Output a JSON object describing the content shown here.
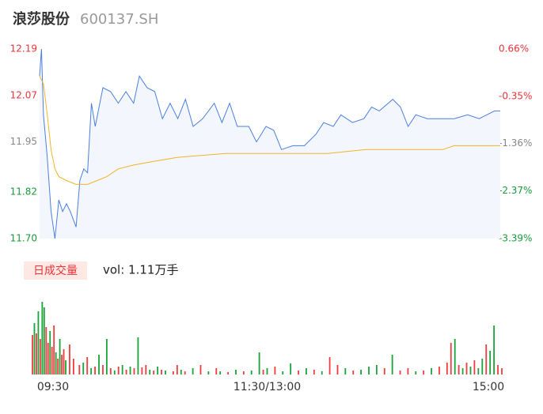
{
  "header": {
    "name": "浪莎股份",
    "code": "600137.SH"
  },
  "chart_data": [
    {
      "type": "line",
      "xlim": [
        0,
        240
      ],
      "ylim": [
        11.7,
        12.19
      ],
      "yticks": [
        {
          "value": 12.19,
          "label": "12.19"
        },
        {
          "value": 12.07,
          "label": "12.07"
        },
        {
          "value": 11.95,
          "label": "11.95"
        },
        {
          "value": 11.82,
          "label": "11.82"
        },
        {
          "value": 11.7,
          "label": "11.70"
        }
      ],
      "ytick_colors": [
        "#e8333a",
        "#e8333a",
        "#888888",
        "#1a9a3a",
        "#1a9a3a"
      ],
      "y2lim": [
        -3.39,
        0.66
      ],
      "y2ticks": [
        {
          "value": 0.66,
          "label": "0.66%"
        },
        {
          "value": -0.35,
          "label": "-0.35%"
        },
        {
          "value": -1.36,
          "label": "-1.36%"
        },
        {
          "value": -2.37,
          "label": "-2.37%"
        },
        {
          "value": -3.39,
          "label": "-3.39%"
        }
      ],
      "series": [
        {
          "color": "#4a7fe0",
          "area_color": "#f3f6fc",
          "x": [
            0,
            1,
            2,
            4,
            6,
            8,
            10,
            12,
            14,
            16,
            19,
            21,
            23,
            25,
            27,
            29,
            33,
            37,
            41,
            45,
            49,
            52,
            56,
            60,
            64,
            68,
            72,
            76,
            80,
            85,
            91,
            95,
            99,
            103,
            109,
            113,
            118,
            122,
            126,
            132,
            138,
            144,
            148,
            153,
            157,
            163,
            169,
            173,
            177,
            184,
            188,
            192,
            196,
            202,
            210,
            216,
            223,
            229,
            233,
            237,
            240
          ],
          "values": [
            12.12,
            12.19,
            12.02,
            11.91,
            11.77,
            11.7,
            11.8,
            11.77,
            11.79,
            11.77,
            11.73,
            11.85,
            11.88,
            11.87,
            12.05,
            11.99,
            12.09,
            12.08,
            12.05,
            12.08,
            12.05,
            12.12,
            12.09,
            12.08,
            12.01,
            12.05,
            12.01,
            12.06,
            11.99,
            12.01,
            12.05,
            12.0,
            12.05,
            11.99,
            11.99,
            11.95,
            11.99,
            11.98,
            11.93,
            11.94,
            11.94,
            11.97,
            12.0,
            11.99,
            12.02,
            12.0,
            12.01,
            12.04,
            12.03,
            12.06,
            12.04,
            11.99,
            12.02,
            12.01,
            12.01,
            12.01,
            12.02,
            12.01,
            12.02,
            12.03,
            12.03
          ]
        },
        {
          "color": "#f0b429",
          "x": [
            0,
            2,
            4,
            6,
            8,
            10,
            14,
            19,
            25,
            30,
            35,
            41,
            49,
            60,
            72,
            97,
            150,
            170,
            210,
            216,
            240
          ],
          "values": [
            12.12,
            12.1,
            12.02,
            11.93,
            11.88,
            11.86,
            11.85,
            11.84,
            11.84,
            11.85,
            11.86,
            11.88,
            11.89,
            11.9,
            11.91,
            11.92,
            11.92,
            11.93,
            11.93,
            11.94,
            11.94
          ]
        }
      ]
    },
    {
      "type": "bar",
      "legend_label": "日成交量",
      "vol_label": "vol: 1.11万手",
      "xlim": [
        0,
        240
      ],
      "ylim": [
        0,
        100
      ],
      "xticks": [
        {
          "value": 0,
          "label": "09:30"
        },
        {
          "value": 120,
          "label": "11:30/13:00"
        },
        {
          "value": 240,
          "label": "15:00"
        }
      ],
      "x": [
        0,
        1,
        2,
        3,
        4,
        5,
        6,
        7,
        8,
        9,
        10,
        11,
        12,
        13,
        14,
        15,
        16,
        17,
        19,
        21,
        24,
        26,
        28,
        30,
        32,
        34,
        36,
        38,
        40,
        42,
        44,
        46,
        48,
        50,
        52,
        54,
        56,
        58,
        60,
        62,
        64,
        66,
        68,
        72,
        74,
        76,
        78,
        82,
        86,
        90,
        94,
        96,
        100,
        104,
        108,
        112,
        116,
        118,
        120,
        124,
        128,
        132,
        136,
        140,
        144,
        148,
        152,
        156,
        160,
        164,
        168,
        172,
        176,
        180,
        184,
        188,
        192,
        196,
        200,
        204,
        208,
        212,
        214,
        216,
        218,
        220,
        222,
        224,
        226,
        228,
        230,
        232,
        234,
        236,
        238,
        240
      ],
      "values": [
        50,
        65,
        52,
        80,
        45,
        92,
        85,
        60,
        40,
        55,
        35,
        62,
        28,
        20,
        45,
        25,
        32,
        18,
        38,
        20,
        12,
        15,
        22,
        8,
        10,
        25,
        12,
        45,
        8,
        5,
        10,
        12,
        6,
        10,
        8,
        47,
        9,
        12,
        6,
        5,
        10,
        6,
        5,
        4,
        12,
        6,
        4,
        8,
        12,
        4,
        8,
        4,
        3,
        6,
        4,
        5,
        28,
        6,
        8,
        10,
        4,
        14,
        5,
        8,
        6,
        4,
        22,
        12,
        8,
        5,
        6,
        10,
        12,
        8,
        25,
        5,
        8,
        4,
        5,
        8,
        10,
        15,
        40,
        45,
        12,
        8,
        15,
        10,
        18,
        8,
        20,
        38,
        30,
        62,
        12,
        8
      ],
      "colors": [
        "r",
        "g",
        "r",
        "g",
        "r",
        "g",
        "g",
        "r",
        "r",
        "g",
        "r",
        "r",
        "g",
        "r",
        "g",
        "r",
        "r",
        "g",
        "r",
        "r",
        "r",
        "g",
        "r",
        "g",
        "r",
        "g",
        "r",
        "g",
        "r",
        "g",
        "r",
        "g",
        "r",
        "g",
        "r",
        "g",
        "r",
        "r",
        "g",
        "r",
        "g",
        "r",
        "g",
        "r",
        "r",
        "g",
        "r",
        "g",
        "r",
        "g",
        "r",
        "g",
        "r",
        "g",
        "r",
        "g",
        "g",
        "r",
        "g",
        "r",
        "g",
        "g",
        "r",
        "g",
        "r",
        "g",
        "r",
        "r",
        "g",
        "r",
        "g",
        "g",
        "g",
        "r",
        "g",
        "r",
        "r",
        "g",
        "r",
        "g",
        "r",
        "r",
        "r",
        "g",
        "r",
        "g",
        "r",
        "g",
        "r",
        "g",
        "g",
        "r",
        "g",
        "g",
        "r",
        "r"
      ],
      "color_map": {
        "r": "#f03c3c",
        "g": "#19a33a"
      }
    }
  ]
}
